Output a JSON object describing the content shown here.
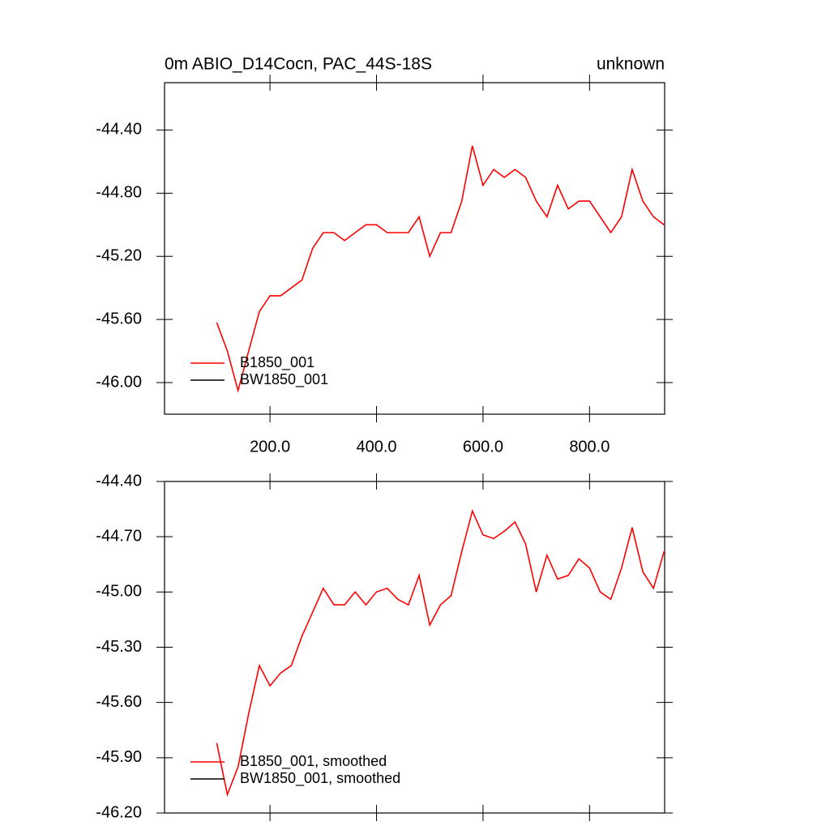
{
  "chart_data": [
    {
      "type": "line",
      "title": "0m ABIO_D14Cocn, PAC_44S-18S",
      "subtitle": "unknown",
      "x": [
        100,
        120,
        140,
        160,
        180,
        200,
        220,
        240,
        260,
        280,
        300,
        320,
        340,
        360,
        380,
        400,
        420,
        440,
        460,
        480,
        500,
        520,
        540,
        560,
        580,
        600,
        620,
        640,
        660,
        680,
        700,
        720,
        740,
        760,
        780,
        800,
        820,
        840,
        860,
        880,
        900,
        920,
        940
      ],
      "series": [
        {
          "name": "BW1850_001",
          "color": "#000000",
          "values": [
            null,
            null,
            null,
            null,
            null,
            null,
            null,
            null,
            null,
            null,
            null,
            null,
            null,
            null,
            null,
            null,
            null,
            null,
            null,
            null,
            null,
            null,
            null,
            null,
            null,
            null,
            null,
            null,
            null,
            null,
            null,
            null,
            null,
            null,
            null,
            null,
            null,
            null,
            null,
            null,
            null,
            null,
            null
          ]
        },
        {
          "name": "B1850_001",
          "color": "#ff0000",
          "values": [
            -45.62,
            -45.8,
            -46.05,
            -45.8,
            -45.55,
            -45.45,
            -45.45,
            -45.4,
            -45.35,
            -45.15,
            -45.05,
            -45.05,
            -45.1,
            -45.05,
            -45.0,
            -45.0,
            -45.05,
            -45.05,
            -45.05,
            -44.95,
            -45.2,
            -45.05,
            -45.05,
            -44.85,
            -44.5,
            -44.75,
            -44.65,
            -44.7,
            -44.65,
            -44.7,
            -44.85,
            -44.95,
            -44.75,
            -44.9,
            -44.85,
            -44.85,
            -44.95,
            -45.05,
            -44.95,
            -44.65,
            -44.85,
            -44.95,
            -45.0
          ]
        }
      ],
      "xlim": [
        2,
        941
      ],
      "ylim": [
        -46.2,
        -44.1
      ],
      "xticks": [
        {
          "value": 200,
          "label": "200.0"
        },
        {
          "value": 400,
          "label": "400.0"
        },
        {
          "value": 600,
          "label": "600.0"
        },
        {
          "value": 800,
          "label": "800.0"
        }
      ],
      "yticks": [
        {
          "value": -46.0,
          "label": "-46.00"
        },
        {
          "value": -45.6,
          "label": "-45.60"
        },
        {
          "value": -45.2,
          "label": "-45.20"
        },
        {
          "value": -44.8,
          "label": "-44.80"
        },
        {
          "value": -44.4,
          "label": "-44.40"
        }
      ],
      "xtick_labels": true,
      "legend": "lower-left"
    },
    {
      "type": "line",
      "x": [
        100,
        120,
        140,
        160,
        180,
        200,
        220,
        240,
        260,
        280,
        300,
        320,
        340,
        360,
        380,
        400,
        420,
        440,
        460,
        480,
        500,
        520,
        540,
        560,
        580,
        600,
        620,
        640,
        660,
        680,
        700,
        720,
        740,
        760,
        780,
        800,
        820,
        840,
        860,
        880,
        900,
        920,
        940
      ],
      "series": [
        {
          "name": "BW1850_001, smoothed",
          "color": "#000000",
          "values": [
            null,
            null,
            null,
            null,
            null,
            null,
            null,
            null,
            null,
            null,
            null,
            null,
            null,
            null,
            null,
            null,
            null,
            null,
            null,
            null,
            null,
            null,
            null,
            null,
            null,
            null,
            null,
            null,
            null,
            null,
            null,
            null,
            null,
            null,
            null,
            null,
            null,
            null,
            null,
            null,
            null,
            null,
            null
          ]
        },
        {
          "name": "B1850_001, smoothed",
          "color": "#ff0000",
          "values": [
            -45.82,
            -46.1,
            -45.95,
            -45.66,
            -45.4,
            -45.51,
            -45.44,
            -45.4,
            -45.24,
            -45.11,
            -44.98,
            -45.07,
            -45.07,
            -45.0,
            -45.07,
            -45.0,
            -44.98,
            -45.04,
            -45.07,
            -44.91,
            -45.18,
            -45.07,
            -45.02,
            -44.78,
            -44.56,
            -44.69,
            -44.71,
            -44.67,
            -44.62,
            -44.74,
            -45.0,
            -44.8,
            -44.93,
            -44.91,
            -44.82,
            -44.87,
            -45.0,
            -45.04,
            -44.87,
            -44.65,
            -44.89,
            -44.98,
            -44.78
          ]
        }
      ],
      "xlim": [
        2,
        941
      ],
      "ylim": [
        -46.2,
        -44.4
      ],
      "xticks": [
        200,
        400,
        600,
        800
      ],
      "yticks": [
        {
          "value": -46.2,
          "label": "-46.20"
        },
        {
          "value": -45.9,
          "label": "-45.90"
        },
        {
          "value": -45.6,
          "label": "-45.60"
        },
        {
          "value": -45.3,
          "label": "-45.30"
        },
        {
          "value": -45.0,
          "label": "-45.00"
        },
        {
          "value": -44.7,
          "label": "-44.70"
        },
        {
          "value": -44.4,
          "label": "-44.40"
        }
      ],
      "xtick_labels": false,
      "legend": "lower-left"
    }
  ]
}
